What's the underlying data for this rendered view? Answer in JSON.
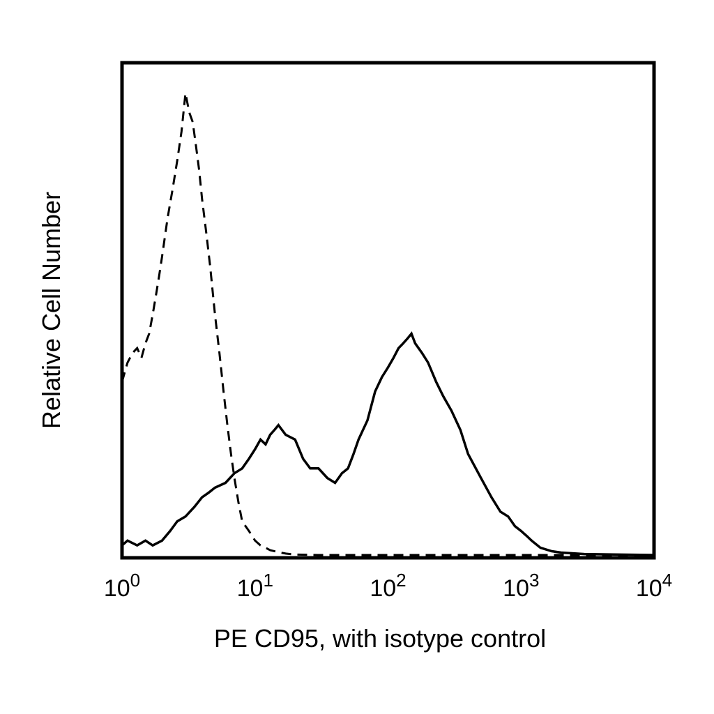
{
  "chart_data": {
    "type": "line",
    "title": "",
    "xlabel": "PE CD95, with isotype control",
    "ylabel": "Relative Cell Number",
    "x_scale": "log",
    "xlim": [
      1,
      10000
    ],
    "ylim": [
      0,
      100
    ],
    "grid": false,
    "legend": "none",
    "x_ticks": [
      {
        "value": 1,
        "base": "10",
        "exp": "0"
      },
      {
        "value": 10,
        "base": "10",
        "exp": "1"
      },
      {
        "value": 100,
        "base": "10",
        "exp": "2"
      },
      {
        "value": 1000,
        "base": "10",
        "exp": "3"
      },
      {
        "value": 10000,
        "base": "10",
        "exp": "4"
      }
    ],
    "series": [
      {
        "style": "dashed",
        "color": "#000000",
        "x": [
          1.0,
          1.1,
          1.2,
          1.3,
          1.4,
          1.5,
          1.6,
          1.7,
          1.8,
          1.9,
          2.0,
          2.2,
          2.4,
          2.6,
          2.8,
          3.0,
          3.2,
          3.4,
          3.6,
          3.8,
          4.0,
          4.3,
          4.6,
          5.0,
          5.4,
          5.8,
          6.2,
          6.6,
          7.0,
          7.5,
          8.0,
          9.0,
          10.0,
          11.0,
          12.0,
          13.0,
          15.0,
          17.0,
          20.0,
          30.0,
          50.0,
          100.0,
          1000.0,
          10000.0
        ],
        "values": [
          36,
          40,
          42,
          43,
          41,
          44,
          46,
          50,
          54,
          58,
          62,
          70,
          76,
          82,
          88,
          96,
          92,
          90,
          85,
          80,
          74,
          67,
          60,
          50,
          42,
          34,
          27,
          21,
          16,
          11,
          7,
          5,
          3,
          2,
          1.5,
          1,
          0.6,
          0.3,
          0.1,
          0,
          0,
          0,
          0,
          0
        ]
      },
      {
        "style": "solid",
        "color": "#000000",
        "x": [
          1.0,
          1.1,
          1.3,
          1.5,
          1.7,
          2.0,
          2.3,
          2.6,
          3.0,
          3.5,
          4.0,
          4.5,
          5.0,
          6.0,
          7.0,
          8.0,
          9.0,
          10.0,
          11.0,
          12.0,
          13.0,
          14.0,
          15.0,
          17.0,
          20.0,
          23.0,
          26.0,
          30.0,
          35.0,
          40.0,
          45.0,
          50.0,
          55.0,
          60.0,
          70.0,
          80.0,
          90.0,
          100.0,
          110.0,
          120.0,
          130.0,
          140.0,
          150.0,
          160.0,
          180.0,
          200.0,
          230.0,
          260.0,
          300.0,
          350.0,
          400.0,
          500.0,
          600.0,
          700.0,
          800.0,
          900.0,
          1000.0,
          1100.0,
          1200.0,
          1400.0,
          1700.0,
          2000.0,
          3000.0,
          5000.0,
          10000.0
        ],
        "values": [
          2,
          3,
          2,
          3,
          2,
          3,
          5,
          7,
          8,
          10,
          12,
          13,
          14,
          15,
          17,
          18,
          20,
          22,
          24,
          23,
          25,
          26,
          27,
          25,
          24,
          20,
          18,
          18,
          16,
          15,
          17,
          18,
          21,
          24,
          28,
          34,
          37,
          39,
          41,
          43,
          44,
          45,
          46,
          44,
          42,
          40,
          36,
          33,
          30,
          26,
          21,
          16,
          12,
          9,
          8,
          6,
          5,
          4,
          3,
          1.5,
          0.8,
          0.5,
          0.2,
          0.1,
          0
        ]
      }
    ]
  }
}
